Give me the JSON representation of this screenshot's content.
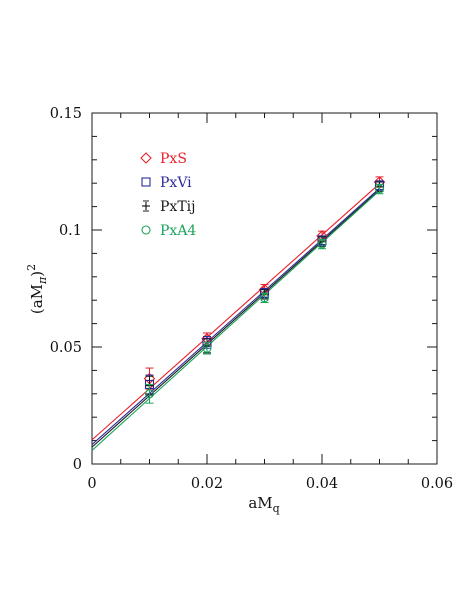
{
  "chart_data": {
    "type": "scatter",
    "title": "",
    "xlabel": "aM",
    "xlabel_sub": "q",
    "ylabel": "(aM",
    "ylabel_sub": "π",
    "ylabel_tail": ")",
    "ylabel_sup": "2",
    "xlim": [
      0,
      0.06
    ],
    "ylim": [
      0,
      0.15
    ],
    "xticks": [
      0,
      0.02,
      0.04,
      0.06
    ],
    "xtick_labels": [
      "0",
      "0.02",
      "0.04",
      "0.06"
    ],
    "yticks": [
      0,
      0.05,
      0.1,
      0.15
    ],
    "ytick_labels": [
      "0",
      "0.05",
      "0.1",
      "0.15"
    ],
    "grid": false,
    "legend_position": "top-left",
    "series": [
      {
        "name": "PxS",
        "marker": "diamond",
        "color": "#e8202a",
        "x": [
          0.01,
          0.02,
          0.03,
          0.04,
          0.05
        ],
        "y": [
          0.0365,
          0.0535,
          0.0745,
          0.0975,
          0.1205
        ],
        "yerr": [
          0.0045,
          0.0025,
          0.0022,
          0.002,
          0.0022
        ],
        "fit": [
          0.0103,
          2.19
        ]
      },
      {
        "name": "PxVi",
        "marker": "square",
        "color": "#2b2a9a",
        "x": [
          0.01,
          0.02,
          0.03,
          0.04,
          0.05
        ],
        "y": [
          0.034,
          0.052,
          0.073,
          0.0955,
          0.119
        ],
        "yerr": [
          0.004,
          0.0025,
          0.002,
          0.002,
          0.002
        ],
        "fit": [
          0.0083,
          2.19
        ]
      },
      {
        "name": "PxTij",
        "marker": "plus",
        "color": "#1a1a1a",
        "x": [
          0.01,
          0.02,
          0.03,
          0.04,
          0.05
        ],
        "y": [
          0.0335,
          0.0505,
          0.0725,
          0.095,
          0.1185
        ],
        "yerr": [
          0.004,
          0.003,
          0.002,
          0.002,
          0.002
        ],
        "fit": [
          0.0072,
          2.2
        ]
      },
      {
        "name": "PxA4",
        "marker": "circle",
        "color": "#1aa35a",
        "x": [
          0.01,
          0.02,
          0.03,
          0.04,
          0.05
        ],
        "y": [
          0.03,
          0.0495,
          0.071,
          0.094,
          0.1175
        ],
        "yerr": [
          0.004,
          0.0025,
          0.002,
          0.002,
          0.002
        ],
        "fit": [
          0.0058,
          2.22
        ]
      }
    ]
  }
}
